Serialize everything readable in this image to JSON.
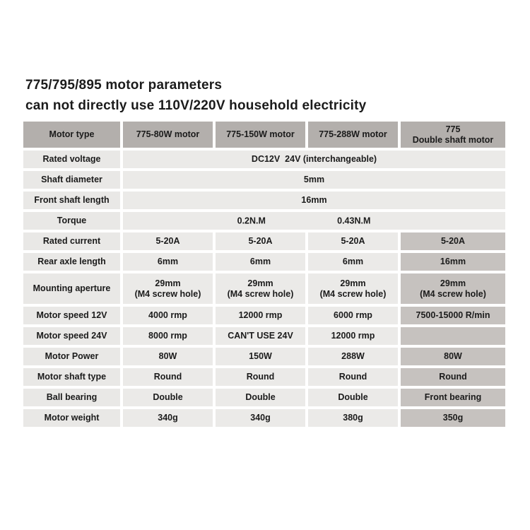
{
  "page": {
    "title_line1": "775/795/895 motor parameters",
    "title_line2": "can not directly use 110V/220V household electricity"
  },
  "colors": {
    "header_bg": "#b3afac",
    "label_column_bg": "#e9e8e6",
    "value_cell_bg": "#ebeae8",
    "highlight_column_bg": "#c6c2bf",
    "text": "#1b1b1b",
    "background": "#ffffff"
  },
  "table": {
    "headers": [
      "Motor type",
      "775-80W motor",
      "775-150W motor",
      "775-288W motor",
      "775\nDouble shaft motor"
    ],
    "merged_rows": [
      {
        "label": "Rated voltage",
        "value": "DC12V  24V (interchangeable)"
      },
      {
        "label": "Shaft diameter",
        "value": "5mm"
      },
      {
        "label": "Front shaft length",
        "value": "16mm"
      }
    ],
    "torque_row": {
      "label": "Torque",
      "value1": "0.2N.M",
      "value2": "0.43N.M"
    },
    "rows": [
      {
        "label": "Rated current",
        "values": [
          "5-20A",
          "5-20A",
          "5-20A",
          "5-20A"
        ]
      },
      {
        "label": "Rear axle length",
        "values": [
          "6mm",
          "6mm",
          "6mm",
          "16mm"
        ]
      },
      {
        "label": "Mounting aperture",
        "values": [
          "29mm\n(M4 screw hole)",
          "29mm\n(M4 screw hole)",
          "29mm\n(M4 screw hole)",
          "29mm\n(M4 screw hole)"
        ]
      },
      {
        "label": "Motor speed 12V",
        "values": [
          "4000 rmp",
          "12000 rmp",
          "6000 rmp",
          "7500-15000 R/min"
        ]
      },
      {
        "label": "Motor speed 24V",
        "values": [
          "8000 rmp",
          "CAN'T USE 24V",
          "12000 rmp",
          ""
        ]
      },
      {
        "label": "Motor Power",
        "values": [
          "80W",
          "150W",
          "288W",
          "80W"
        ]
      },
      {
        "label": "Motor shaft type",
        "values": [
          "Round",
          "Round",
          "Round",
          "Round"
        ]
      },
      {
        "label": "Ball bearing",
        "values": [
          "Double",
          "Double",
          "Double",
          "Front bearing"
        ]
      },
      {
        "label": "Motor weight",
        "values": [
          "340g",
          "340g",
          "380g",
          "350g"
        ]
      }
    ]
  }
}
